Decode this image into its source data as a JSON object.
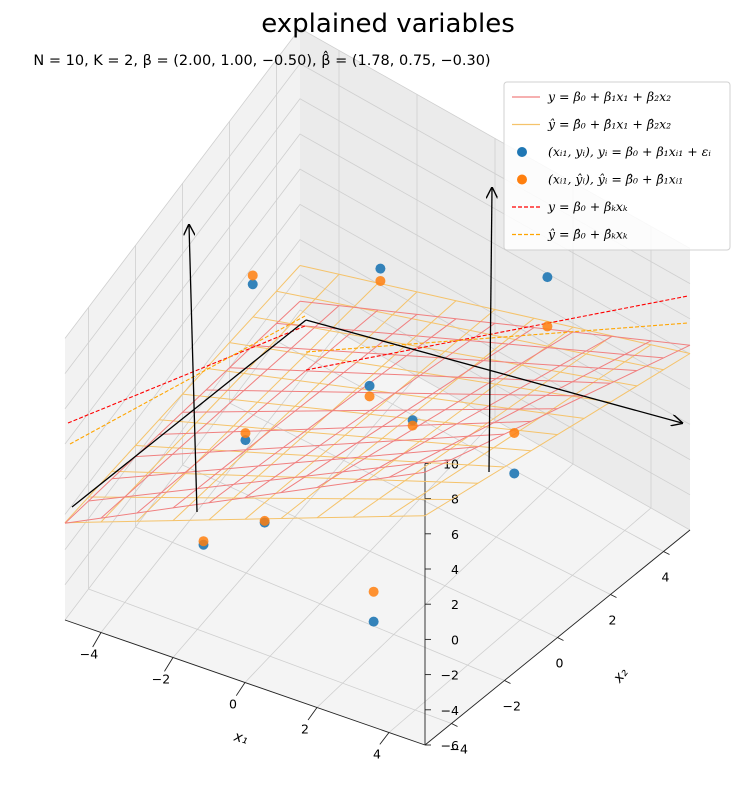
{
  "chart_data": {
    "type": "3d-surface-scatter",
    "title": "explained variables",
    "subtitle": "N = 10, K = 2, β = (2.00, 1.00, −0.50), β̂ = (1.78, 0.75, −0.30)",
    "xlabel": "x₁",
    "ylabel": "x₂",
    "zlabel": "",
    "xlim": [
      -5,
      5
    ],
    "ylim": [
      -5,
      5
    ],
    "zlim": [
      -6,
      10
    ],
    "x_ticks": [
      "−4",
      "−2",
      "0",
      "2",
      "4"
    ],
    "y_ticks": [
      "−4",
      "−2",
      "0",
      "2",
      "4"
    ],
    "z_ticks": [
      "−6",
      "−4",
      "−2",
      "0",
      "2",
      "4",
      "6",
      "8",
      "10"
    ],
    "beta": [
      2.0,
      1.0,
      -0.5
    ],
    "beta_hat": [
      1.78,
      0.75,
      -0.3
    ],
    "grid": true,
    "legend_position": "top-right",
    "legend": [
      {
        "label": "y = β₀ + β₁x₁ + β₂x₂",
        "kind": "line",
        "color": "#f08080"
      },
      {
        "label": "ŷ = β̂₀ + β̂₁x₁ + β̂₂x₂",
        "kind": "line",
        "color": "#f5c36b"
      },
      {
        "label": "(xᵢ₁, yᵢ), yᵢ = β₀ + β₁xᵢ₁ + εᵢ",
        "kind": "marker",
        "color": "#1f77b4"
      },
      {
        "label": "(xᵢ₁, ŷᵢ), ŷᵢ = β̂₀ + β̂₁xᵢ₁",
        "kind": "marker",
        "color": "#ff7f0e"
      },
      {
        "label": "y = β₀ + βₖxₖ",
        "kind": "dashed",
        "color": "#ff0000"
      },
      {
        "label": "ŷ = β̂₀ + β̂ₖxₖ",
        "kind": "dashed",
        "color": "#ffa500"
      }
    ],
    "points": [
      {
        "x1": -4.7,
        "x2": 2.5,
        "y": 0.2,
        "y_hat": 0.7
      },
      {
        "x1": -3.0,
        "x2": -0.5,
        "y": -1.8,
        "y_hat": -1.4
      },
      {
        "x1": -1.5,
        "x2": -2.0,
        "y": -2.7,
        "y_hat": -2.6
      },
      {
        "x1": -1.0,
        "x2": 1.5,
        "y": 0.1,
        "y_hat": -0.5
      },
      {
        "x1": -2.0,
        "x2": 3.5,
        "y": 2.5,
        "y_hat": 1.8
      },
      {
        "x1": 0.8,
        "x2": 0.5,
        "y": 1.5,
        "y_hat": 1.2
      },
      {
        "x1": 2.5,
        "x2": -3.5,
        "y": -2.8,
        "y_hat": -1.1
      },
      {
        "x1": -2.5,
        "x2": -3.0,
        "y": -3.2,
        "y_hat": -3.0
      },
      {
        "x1": 2.0,
        "x2": 4.0,
        "y": 6.0,
        "y_hat": 3.2
      },
      {
        "x1": 3.5,
        "x2": 0.5,
        "y": 1.2,
        "y_hat": 3.5
      }
    ],
    "colors": {
      "true_plane": "#f08080",
      "fitted_plane": "#f5c36b",
      "observed": "#1f77b4",
      "fitted": "#ff7f0e",
      "true_line": "#ff0000",
      "fitted_line": "#ffa500"
    }
  }
}
